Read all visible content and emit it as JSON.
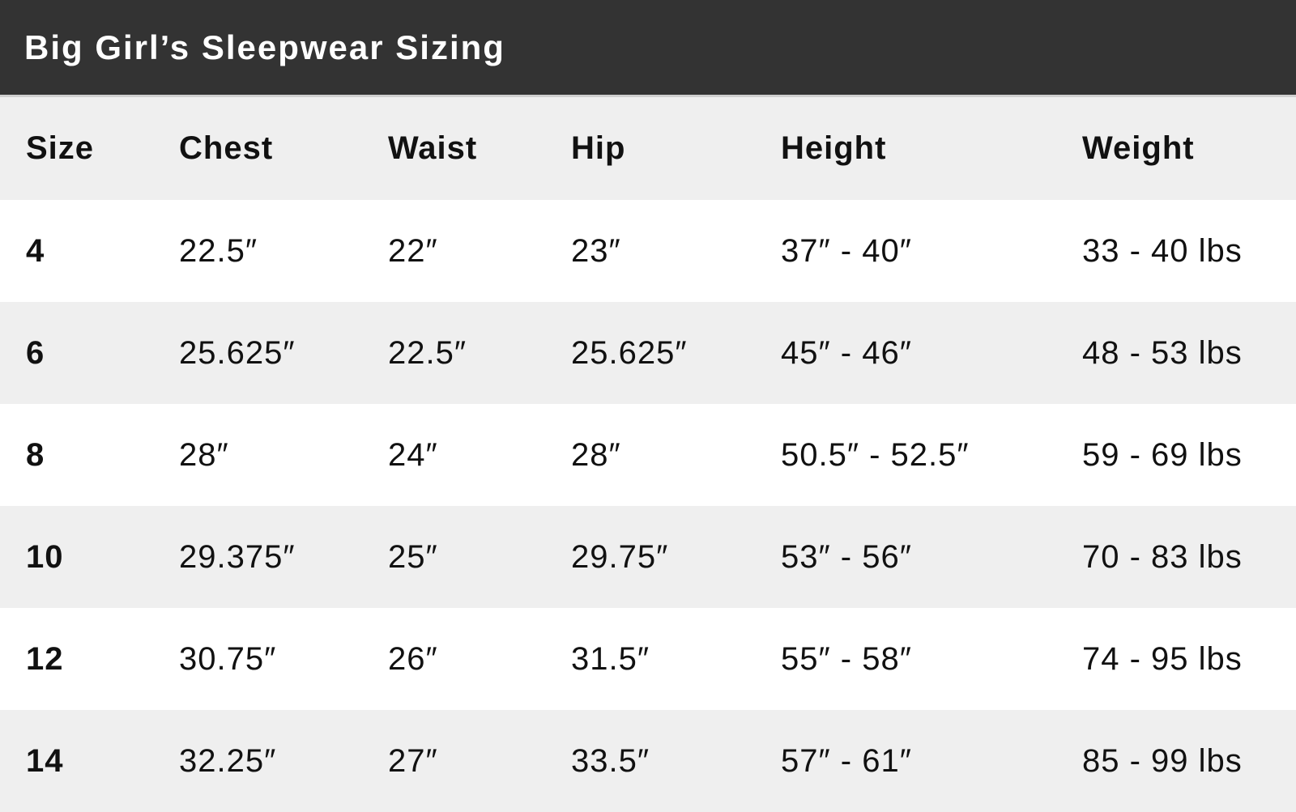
{
  "title": "Big Girl’s Sleepwear Sizing",
  "colors": {
    "header_bg": "#333333",
    "column_header_bg": "#efefef",
    "alt_row_bg": "#efefef"
  },
  "columns": [
    "Size",
    "Chest",
    "Waist",
    "Hip",
    "Height",
    "Weight"
  ],
  "rows": [
    [
      "4",
      "22.5″",
      "22″",
      "23″",
      "37″ - 40″",
      "33 - 40 lbs"
    ],
    [
      "6",
      "25.625″",
      "22.5″",
      "25.625″",
      "45″ - 46″",
      "48 - 53 lbs"
    ],
    [
      "8",
      "28″",
      "24″",
      "28″",
      "50.5″ - 52.5″",
      "59 - 69 lbs"
    ],
    [
      "10",
      "29.375″",
      "25″",
      "29.75″",
      "53″ - 56″",
      "70 - 83 lbs"
    ],
    [
      "12",
      "30.75″",
      "26″",
      "31.5″",
      "55″ - 58″",
      "74 - 95 lbs"
    ],
    [
      "14",
      "32.25″",
      "27″",
      "33.5″",
      "57″ - 61″",
      "85 - 99 lbs"
    ]
  ]
}
